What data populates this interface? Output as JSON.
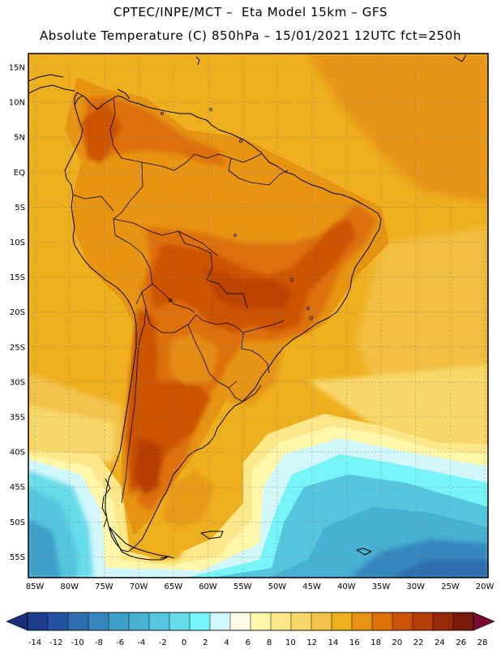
{
  "header": {
    "line1": "CPTEC/INPE/MCT –  Eta Model 15km – GFS",
    "line2": "Absolute Temperature (C) 850hPa – 15/01/2021 12UTC fct=250h"
  },
  "lat_labels": [
    "15N",
    "10N",
    "5N",
    "EQ",
    "5S",
    "10S",
    "15S",
    "20S",
    "25S",
    "30S",
    "35S",
    "40S",
    "45S",
    "50S",
    "55S"
  ],
  "lon_labels": [
    "85W",
    "80W",
    "75W",
    "70W",
    "65W",
    "60W",
    "55W",
    "50W",
    "45W",
    "40W",
    "35W",
    "30W",
    "25W",
    "20W"
  ],
  "colorbar": {
    "ticks": [
      "-14",
      "-12",
      "-10",
      "-8",
      "-6",
      "-4",
      "-2",
      "0",
      "2",
      "4",
      "6",
      "8",
      "10",
      "12",
      "14",
      "16",
      "18",
      "20",
      "22",
      "24",
      "26",
      "28"
    ],
    "colors": [
      "#1c3c8c",
      "#2555a0",
      "#2d6db0",
      "#3586be",
      "#3d9ec8",
      "#46b1d2",
      "#55c6de",
      "#66dcea",
      "#77f4f8",
      "#d2f7fb",
      "#fdfae8",
      "#fef6a8",
      "#fce88a",
      "#f8d86a",
      "#f3c34b",
      "#eeaf1e",
      "#e69412",
      "#dd6f08",
      "#cc5206",
      "#b53d06",
      "#962a08",
      "#7a1a0c"
    ],
    "under_color": "#1a2f7a",
    "over_color": "#7c0a30"
  }
}
